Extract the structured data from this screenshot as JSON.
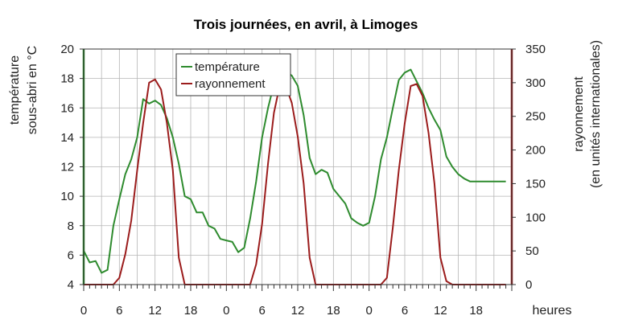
{
  "chart_data": {
    "type": "line",
    "title": "Trois journées, en avril, à Limoges",
    "xlabel": "heures",
    "ylabel_left": [
      "température",
      "sous-abri en °C"
    ],
    "ylabel_right": [
      "rayonnement",
      "(en unités internationales)"
    ],
    "x_tick_labels": [
      "0",
      "6",
      "12",
      "18",
      "0",
      "6",
      "12",
      "18",
      "0",
      "6",
      "12",
      "18"
    ],
    "x_tick_hours": [
      0,
      6,
      12,
      18,
      24,
      30,
      36,
      42,
      48,
      54,
      60,
      66
    ],
    "xlim": [
      0,
      72
    ],
    "ylim_left": [
      4,
      20
    ],
    "ylim_right": [
      0,
      350
    ],
    "yticks_left": [
      4,
      6,
      8,
      10,
      12,
      14,
      16,
      18,
      20
    ],
    "yticks_right": [
      0,
      50,
      100,
      150,
      200,
      250,
      300,
      350
    ],
    "grid": true,
    "legend_position": "top-left",
    "series": [
      {
        "name": "température",
        "axis": "left",
        "color": "#2e8b2e",
        "x": [
          0,
          1,
          2,
          3,
          4,
          5,
          6,
          7,
          8,
          9,
          10,
          11,
          12,
          13,
          14,
          15,
          16,
          17,
          18,
          19,
          20,
          21,
          22,
          23,
          24,
          25,
          26,
          27,
          28,
          29,
          30,
          31,
          32,
          33,
          34,
          35,
          36,
          37,
          38,
          39,
          40,
          41,
          42,
          43,
          44,
          45,
          46,
          47,
          48,
          49,
          50,
          51,
          52,
          53,
          54,
          55,
          56,
          57,
          58,
          59,
          60,
          61,
          62,
          63,
          64,
          65,
          66,
          67,
          68,
          69,
          70,
          71
        ],
        "values": [
          6.3,
          5.5,
          5.6,
          4.8,
          5.0,
          8.0,
          9.8,
          11.5,
          12.5,
          14.0,
          16.6,
          16.3,
          16.5,
          16.2,
          15.3,
          14.0,
          12.2,
          10.0,
          9.8,
          8.9,
          8.9,
          8.0,
          7.8,
          7.1,
          7.0,
          6.9,
          6.2,
          6.5,
          8.5,
          11.0,
          14.0,
          16.0,
          17.6,
          18.0,
          18.5,
          18.2,
          17.5,
          15.5,
          12.6,
          11.5,
          11.8,
          11.6,
          10.5,
          10.0,
          9.5,
          8.5,
          8.2,
          8.0,
          8.2,
          10.0,
          12.5,
          14.0,
          16.0,
          17.9,
          18.4,
          18.6,
          17.8,
          17.0,
          16.0,
          15.2,
          14.5,
          12.7,
          12.0,
          11.5,
          11.2,
          11.0,
          11.0,
          11.0,
          11.0,
          11.0,
          11.0,
          11.0
        ]
      },
      {
        "name": "rayonnement",
        "axis": "right",
        "color": "#9b1c1c",
        "x": [
          0,
          1,
          2,
          3,
          4,
          5,
          6,
          7,
          8,
          9,
          10,
          11,
          12,
          13,
          14,
          15,
          16,
          17,
          18,
          19,
          20,
          21,
          22,
          23,
          24,
          25,
          26,
          27,
          28,
          29,
          30,
          31,
          32,
          33,
          34,
          35,
          36,
          37,
          38,
          39,
          40,
          41,
          42,
          43,
          44,
          45,
          46,
          47,
          48,
          49,
          50,
          51,
          52,
          53,
          54,
          55,
          56,
          57,
          58,
          59,
          60,
          61,
          62,
          63,
          64,
          65,
          66,
          67,
          68,
          69,
          70,
          71
        ],
        "values": [
          0,
          0,
          0,
          0,
          0,
          0,
          10,
          45,
          95,
          170,
          240,
          300,
          305,
          290,
          240,
          170,
          40,
          0,
          0,
          0,
          0,
          0,
          0,
          0,
          0,
          0,
          0,
          0,
          0,
          30,
          90,
          180,
          255,
          297,
          295,
          270,
          220,
          150,
          40,
          0,
          0,
          0,
          0,
          0,
          0,
          0,
          0,
          0,
          0,
          0,
          0,
          10,
          85,
          170,
          240,
          295,
          298,
          280,
          225,
          150,
          40,
          5,
          0,
          0,
          0,
          0,
          0,
          0,
          0,
          0,
          0,
          0
        ]
      }
    ]
  }
}
